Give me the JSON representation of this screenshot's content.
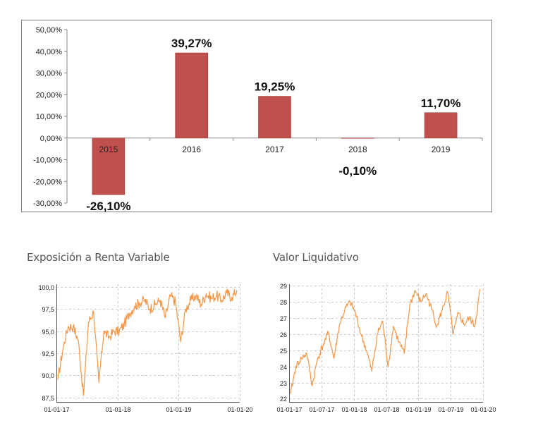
{
  "chart_data": [
    {
      "type": "bar",
      "title": "",
      "xlabel": "",
      "ylabel": "",
      "categories": [
        "2015",
        "2016",
        "2017",
        "2018",
        "2019"
      ],
      "values": [
        -26.1,
        39.27,
        19.25,
        -0.1,
        11.7
      ],
      "value_labels": [
        "-26,10%",
        "39,27%",
        "19,25%",
        "-0,10%",
        "11,70%"
      ],
      "yticks": [
        "50,00%",
        "40,00%",
        "30,00%",
        "20,00%",
        "10,00%",
        "0,00%",
        "-10,00%",
        "-20,00%",
        "-30,00%"
      ],
      "ytick_values": [
        50,
        40,
        30,
        20,
        10,
        0,
        -10,
        -20,
        -30
      ],
      "ylim": [
        -30,
        50
      ],
      "grid": false,
      "bar_color": "#c0504d"
    },
    {
      "type": "line",
      "title": "Exposición a Renta Variable",
      "xlabel": "",
      "ylabel": "",
      "xticks": [
        "01-01-17",
        "01-01-18",
        "01-01-19",
        "01-01-20"
      ],
      "xlim": [
        "01-01-17",
        "01-01-20"
      ],
      "yticks": [
        "100,0",
        "97,5",
        "95,0",
        "92,5",
        "90,0",
        "87,5"
      ],
      "ytick_values": [
        100,
        97.5,
        95,
        92.5,
        90,
        87.5
      ],
      "ylim": [
        87,
        100.3
      ],
      "grid": true,
      "line_color": "#f79646",
      "x": [
        "2017-01",
        "2017-02",
        "2017-03",
        "2017-04",
        "2017-05",
        "2017-06",
        "2017-07",
        "2017-08",
        "2017-09",
        "2017-10",
        "2017-11",
        "2017-12",
        "2018-01",
        "2018-02",
        "2018-03",
        "2018-04",
        "2018-05",
        "2018-06",
        "2018-07",
        "2018-08",
        "2018-09",
        "2018-10",
        "2018-11",
        "2018-12",
        "2019-01",
        "2019-02",
        "2019-03",
        "2019-04",
        "2019-05",
        "2019-06",
        "2019-07",
        "2019-08",
        "2019-09",
        "2019-10",
        "2019-11",
        "2019-12"
      ],
      "values": [
        89.5,
        93.0,
        95.5,
        95.5,
        94.0,
        87.7,
        96.0,
        97.2,
        89.2,
        95.0,
        94.3,
        95.0,
        95.0,
        95.8,
        97.0,
        97.8,
        98.2,
        98.5,
        97.5,
        98.0,
        98.5,
        96.5,
        99.0,
        98.3,
        93.8,
        97.5,
        98.5,
        99.0,
        98.0,
        99.2,
        98.7,
        99.0,
        98.5,
        99.3,
        98.8,
        99.6
      ]
    },
    {
      "type": "line",
      "title": "Valor Liquidativo",
      "xlabel": "",
      "ylabel": "",
      "xticks": [
        "01-01-17",
        "01-07-17",
        "01-01-18",
        "01-07-18",
        "01-01-19",
        "01-07-19",
        "01-01-20"
      ],
      "xlim": [
        "01-01-17",
        "01-01-20"
      ],
      "yticks": [
        "29",
        "28",
        "27",
        "26",
        "25",
        "24",
        "23",
        "22"
      ],
      "ytick_values": [
        29,
        28,
        27,
        26,
        25,
        24,
        23,
        22
      ],
      "ylim": [
        21.8,
        29.1
      ],
      "grid": true,
      "line_color": "#f79646",
      "x": [
        "2017-01",
        "2017-02",
        "2017-03",
        "2017-04",
        "2017-05",
        "2017-06",
        "2017-07",
        "2017-08",
        "2017-09",
        "2017-10",
        "2017-11",
        "2017-12",
        "2018-01",
        "2018-02",
        "2018-03",
        "2018-04",
        "2018-05",
        "2018-06",
        "2018-07",
        "2018-08",
        "2018-09",
        "2018-10",
        "2018-11",
        "2018-12",
        "2019-01",
        "2019-02",
        "2019-03",
        "2019-04",
        "2019-05",
        "2019-06",
        "2019-07",
        "2019-08",
        "2019-09",
        "2019-10",
        "2019-11",
        "2019-12"
      ],
      "values": [
        22.3,
        24.0,
        24.5,
        24.8,
        22.8,
        24.5,
        25.3,
        26.1,
        24.5,
        26.5,
        27.5,
        28.0,
        27.3,
        26.0,
        25.0,
        23.7,
        26.0,
        26.8,
        24.0,
        26.5,
        25.5,
        24.8,
        27.8,
        28.7,
        28.0,
        28.5,
        27.6,
        26.5,
        27.5,
        28.6,
        26.0,
        27.3,
        26.6,
        27.0,
        26.5,
        28.8
      ]
    }
  ]
}
